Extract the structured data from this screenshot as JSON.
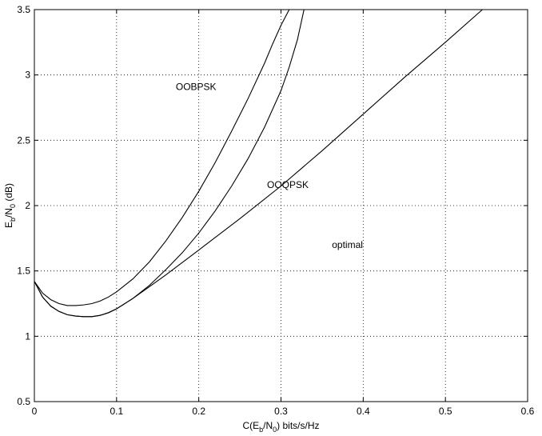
{
  "chart_data": {
    "type": "line",
    "title": "",
    "xlabel_parts": {
      "pre": "C(E",
      "sub1": "b",
      "mid": "/N",
      "sub2": "0",
      "post": ") bits/s/Hz"
    },
    "ylabel_parts": {
      "pre": "E",
      "sub1": "b",
      "mid": "/N",
      "sub2": "0",
      "post": " (dB)"
    },
    "xlim": [
      0,
      0.6
    ],
    "ylim": [
      0.5,
      3.5
    ],
    "xticks": [
      0,
      0.1,
      0.2,
      0.3,
      0.4,
      0.5,
      0.6
    ],
    "yticks": [
      0.5,
      1,
      1.5,
      2,
      2.5,
      3,
      3.5
    ],
    "xtick_labels": [
      "0",
      "0.1",
      "0.2",
      "0.3",
      "0.4",
      "0.5",
      "0.6"
    ],
    "ytick_labels": [
      "0.5",
      "1",
      "1.5",
      "2",
      "2.5",
      "3",
      "3.5"
    ],
    "grid": true,
    "series": [
      {
        "name": "OOBPSK",
        "x": [
          0,
          0.01,
          0.02,
          0.03,
          0.04,
          0.05,
          0.06,
          0.07,
          0.08,
          0.09,
          0.1,
          0.12,
          0.14,
          0.16,
          0.18,
          0.2,
          0.22,
          0.24,
          0.26,
          0.28,
          0.29,
          0.3,
          0.31
        ],
        "y": [
          1.42,
          1.33,
          1.28,
          1.25,
          1.235,
          1.235,
          1.24,
          1.25,
          1.27,
          1.3,
          1.34,
          1.44,
          1.57,
          1.73,
          1.91,
          2.11,
          2.33,
          2.57,
          2.82,
          3.09,
          3.24,
          3.38,
          3.5
        ]
      },
      {
        "name": "OOQPSK",
        "x": [
          0,
          0.01,
          0.02,
          0.03,
          0.04,
          0.05,
          0.06,
          0.07,
          0.08,
          0.09,
          0.1,
          0.12,
          0.14,
          0.16,
          0.18,
          0.2,
          0.22,
          0.24,
          0.26,
          0.28,
          0.3,
          0.31,
          0.32,
          0.328
        ],
        "y": [
          1.42,
          1.3,
          1.23,
          1.19,
          1.165,
          1.155,
          1.15,
          1.15,
          1.16,
          1.18,
          1.21,
          1.29,
          1.39,
          1.51,
          1.64,
          1.79,
          1.96,
          2.15,
          2.36,
          2.6,
          2.88,
          3.06,
          3.27,
          3.5
        ]
      },
      {
        "name": "optimal",
        "x": [
          0,
          0.01,
          0.02,
          0.03,
          0.04,
          0.05,
          0.06,
          0.07,
          0.08,
          0.09,
          0.1,
          0.12,
          0.14,
          0.16,
          0.2,
          0.25,
          0.3,
          0.35,
          0.4,
          0.45,
          0.5,
          0.545
        ],
        "y": [
          1.42,
          1.3,
          1.23,
          1.19,
          1.165,
          1.155,
          1.15,
          1.15,
          1.16,
          1.18,
          1.21,
          1.29,
          1.38,
          1.47,
          1.66,
          1.9,
          2.15,
          2.42,
          2.7,
          2.98,
          3.25,
          3.5
        ]
      }
    ],
    "annotations": [
      {
        "text": "OOBPSK",
        "x": 0.172,
        "y": 2.91
      },
      {
        "text": "OOQPSK",
        "x": 0.283,
        "y": 2.16
      },
      {
        "text": "optimal",
        "x": 0.362,
        "y": 1.7
      }
    ]
  }
}
